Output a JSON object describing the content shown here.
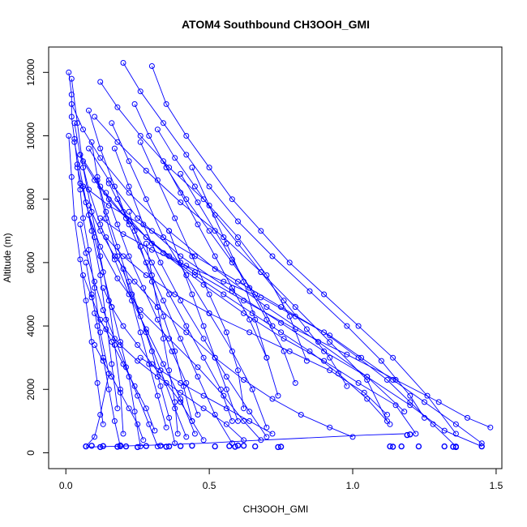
{
  "chart_data": {
    "type": "line",
    "title": "ATOM4 Southbound CH3OOH_GMI",
    "xlabel": "CH3OOH_GMI",
    "ylabel": "Altitude (m)",
    "xlim": [
      -0.06,
      1.52
    ],
    "ylim": [
      -500,
      12800
    ],
    "xticks": [
      0.0,
      0.5,
      1.0,
      1.5
    ],
    "xtick_labels": [
      "0.0",
      "0.5",
      "1.0",
      "1.5"
    ],
    "yticks": [
      0,
      2000,
      4000,
      6000,
      8000,
      10000,
      12000
    ],
    "ytick_labels": [
      "0",
      "2000",
      "4000",
      "6000",
      "8000",
      "10000",
      "12000"
    ],
    "grid": false,
    "legend": "none",
    "marker": "open-circle",
    "color": "#0000ff",
    "series": [
      {
        "x": [
          0.07,
          0.1,
          0.12,
          0.15,
          0.12,
          0.1,
          0.08,
          0.06,
          0.05,
          0.04,
          0.03,
          0.02,
          0.02,
          0.01
        ],
        "y": [
          200,
          500,
          1200,
          2500,
          3800,
          5200,
          6400,
          7400,
          8300,
          9100,
          9900,
          10600,
          11300,
          12000
        ]
      },
      {
        "x": [
          0.15,
          0.2,
          0.3,
          0.45,
          0.62,
          0.8,
          0.98,
          1.15,
          1.3,
          1.4,
          1.48
        ],
        "y": [
          8500,
          7600,
          6600,
          5700,
          4800,
          3900,
          3100,
          2300,
          1600,
          1100,
          800
        ]
      },
      {
        "x": [
          0.08,
          0.15,
          0.25,
          0.4,
          0.58,
          0.75,
          0.9,
          1.05,
          1.2,
          1.32,
          1.45
        ],
        "y": [
          9600,
          8600,
          7400,
          6200,
          5100,
          4100,
          3200,
          2400,
          1500,
          700,
          200
        ]
      },
      {
        "x": [
          0.02,
          0.06,
          0.12,
          0.22,
          0.36,
          0.52,
          0.7,
          0.88,
          1.05,
          1.18
        ],
        "y": [
          11000,
          10200,
          9300,
          8200,
          7000,
          5800,
          4600,
          3500,
          2400,
          1300
        ]
      },
      {
        "x": [
          0.1,
          0.18,
          0.28,
          0.4,
          0.55,
          0.68,
          0.8,
          0.92,
          1.05,
          1.12
        ],
        "y": [
          10600,
          9800,
          8900,
          7900,
          6800,
          5700,
          4600,
          3500,
          2300,
          1000
        ]
      },
      {
        "x": [
          0.05,
          0.12,
          0.22,
          0.34,
          0.48,
          0.62,
          0.76,
          0.9,
          1.02,
          1.15,
          1.22
        ],
        "y": [
          9400,
          8400,
          7300,
          6300,
          5300,
          4400,
          3600,
          2900,
          2200,
          1500,
          600
        ]
      },
      {
        "x": [
          0.3,
          0.35,
          0.42,
          0.5,
          0.58,
          0.68,
          0.78,
          0.9,
          1.02,
          1.14,
          1.26,
          1.36
        ],
        "y": [
          12200,
          11000,
          10000,
          9000,
          8000,
          7000,
          6000,
          5000,
          4000,
          3000,
          1800,
          600
        ]
      },
      {
        "x": [
          0.2,
          0.26,
          0.34,
          0.42,
          0.5,
          0.6,
          0.72,
          0.85,
          0.98,
          1.1,
          1.2,
          1.25
        ],
        "y": [
          12300,
          11400,
          10400,
          9400,
          8400,
          7300,
          6200,
          5100,
          4000,
          2900,
          1800,
          1100
        ]
      },
      {
        "x": [
          0.12,
          0.18,
          0.26,
          0.36,
          0.48,
          0.6,
          0.7,
          0.78,
          0.84
        ],
        "y": [
          11700,
          10900,
          10000,
          9000,
          8000,
          6800,
          5600,
          4300,
          2900
        ]
      },
      {
        "x": [
          0.06,
          0.08,
          0.12,
          0.18,
          0.26,
          0.36,
          0.46,
          0.55,
          0.62,
          0.68
        ],
        "y": [
          8400,
          7500,
          6500,
          5500,
          4500,
          3600,
          2700,
          1800,
          1000,
          400
        ]
      },
      {
        "x": [
          0.03,
          0.05,
          0.08,
          0.12,
          0.17,
          0.22,
          0.28,
          0.34,
          0.4,
          0.45
        ],
        "y": [
          10400,
          9400,
          8300,
          7200,
          6100,
          5000,
          3900,
          2800,
          1700,
          600
        ]
      },
      {
        "x": [
          0.09,
          0.11,
          0.14,
          0.18,
          0.22,
          0.26,
          0.3,
          0.33,
          0.36,
          0.38
        ],
        "y": [
          9800,
          8700,
          7600,
          6500,
          5400,
          4300,
          3200,
          2100,
          1100,
          300
        ]
      },
      {
        "x": [
          0.04,
          0.07,
          0.1,
          0.13,
          0.16,
          0.19,
          0.22,
          0.24,
          0.26
        ],
        "y": [
          9000,
          7900,
          6800,
          5700,
          4600,
          3500,
          2400,
          1300,
          200
        ]
      },
      {
        "x": [
          0.11,
          0.14,
          0.18,
          0.23,
          0.28,
          0.33,
          0.38,
          0.42
        ],
        "y": [
          8600,
          7400,
          6200,
          5000,
          3800,
          2600,
          1400,
          500
        ]
      },
      {
        "x": [
          0.02,
          0.04,
          0.06,
          0.09,
          0.12,
          0.15,
          0.17,
          0.19,
          0.2
        ],
        "y": [
          11800,
          10400,
          9000,
          7600,
          6200,
          4800,
          3400,
          2000,
          600
        ]
      },
      {
        "x": [
          0.16,
          0.22,
          0.28,
          0.34,
          0.42,
          0.5,
          0.58,
          0.65,
          0.7
        ],
        "y": [
          10400,
          9200,
          8000,
          6800,
          5600,
          4400,
          3200,
          2000,
          800
        ]
      },
      {
        "x": [
          0.26,
          0.32,
          0.38,
          0.44,
          0.5,
          0.56,
          0.6,
          0.62
        ],
        "y": [
          9800,
          8600,
          7400,
          6200,
          5000,
          3800,
          2600,
          1400
        ]
      },
      {
        "x": [
          0.08,
          0.12,
          0.17,
          0.24,
          0.32,
          0.42,
          0.52,
          0.62,
          0.72,
          0.82,
          0.92,
          1.0
        ],
        "y": [
          7800,
          7000,
          6200,
          5400,
          4600,
          3800,
          3000,
          2300,
          1700,
          1200,
          800,
          500
        ]
      },
      {
        "x": [
          0.18,
          0.24,
          0.3,
          0.36,
          0.42,
          0.48,
          0.54,
          0.58
        ],
        "y": [
          8000,
          7000,
          6000,
          5000,
          4000,
          3000,
          2000,
          1000
        ]
      },
      {
        "x": [
          0.05,
          0.07,
          0.1,
          0.13,
          0.17,
          0.21,
          0.25,
          0.29,
          0.32
        ],
        "y": [
          7200,
          6300,
          5400,
          4500,
          3600,
          2700,
          1800,
          900,
          200
        ]
      },
      {
        "x": [
          0.34,
          0.4,
          0.46,
          0.52,
          0.58,
          0.64,
          0.7,
          0.74
        ],
        "y": [
          9200,
          8200,
          7200,
          6200,
          5200,
          4200,
          3000,
          1800
        ]
      },
      {
        "x": [
          0.14,
          0.2,
          0.28,
          0.38,
          0.5,
          0.64,
          0.78,
          0.92,
          1.04,
          1.12
        ],
        "y": [
          6800,
          6200,
          5600,
          5000,
          4400,
          3800,
          3200,
          2600,
          1900,
          1200
        ]
      },
      {
        "x": [
          0.07,
          0.09,
          0.11,
          0.13,
          0.15,
          0.17,
          0.19
        ],
        "y": [
          6000,
          5000,
          4000,
          3000,
          2000,
          1000,
          200
        ]
      },
      {
        "x": [
          0.22,
          0.26,
          0.3,
          0.34,
          0.38,
          0.41,
          0.44
        ],
        "y": [
          7600,
          6500,
          5400,
          4300,
          3200,
          2100,
          1000
        ]
      },
      {
        "x": [
          0.4,
          0.46,
          0.52,
          0.58,
          0.64,
          0.7,
          0.76,
          0.8
        ],
        "y": [
          8800,
          7900,
          7000,
          6100,
          5200,
          4200,
          3200,
          2200
        ]
      },
      {
        "x": [
          0.06,
          0.1,
          0.15,
          0.21,
          0.28,
          0.36,
          0.45,
          0.55,
          0.65,
          0.75,
          0.85,
          0.95,
          1.05,
          1.13
        ],
        "y": [
          9200,
          8600,
          8000,
          7400,
          6800,
          6200,
          5600,
          5000,
          4400,
          3800,
          3200,
          2500,
          1700,
          900
        ]
      },
      {
        "x": [
          0.13,
          0.16,
          0.2,
          0.25,
          0.3,
          0.35,
          0.4,
          0.44,
          0.48
        ],
        "y": [
          5200,
          4600,
          4000,
          3400,
          2800,
          2200,
          1600,
          1000,
          400
        ]
      },
      {
        "x": [
          0.01,
          0.02,
          0.03,
          0.05,
          0.07,
          0.09,
          0.11,
          0.13
        ],
        "y": [
          10000,
          8700,
          7400,
          6100,
          4800,
          3500,
          2200,
          900
        ]
      },
      {
        "x": [
          0.24,
          0.29,
          0.35,
          0.42,
          0.5,
          0.58,
          0.66,
          0.72
        ],
        "y": [
          11000,
          10000,
          9000,
          8000,
          7000,
          6000,
          5000,
          4000
        ]
      },
      {
        "x": [
          0.1,
          0.14,
          0.19,
          0.25,
          0.32,
          0.4,
          0.48,
          0.56,
          0.62
        ],
        "y": [
          4400,
          3900,
          3400,
          2900,
          2400,
          1900,
          1400,
          900,
          400
        ]
      },
      {
        "x": [
          0.05,
          0.15,
          0.3,
          0.45,
          0.6,
          0.75,
          0.9,
          1.02,
          1.12,
          1.2,
          1.28,
          1.36
        ],
        "y": [
          8500,
          7800,
          7000,
          6200,
          5400,
          4600,
          3800,
          3000,
          2300,
          1600,
          900,
          200
        ]
      },
      {
        "x": [
          0.28,
          0.3,
          0.32,
          0.34,
          0.36,
          0.38,
          0.39
        ],
        "y": [
          6600,
          5600,
          4600,
          3600,
          2600,
          1600,
          600
        ]
      },
      {
        "x": [
          0.17,
          0.22,
          0.27,
          0.33,
          0.4,
          0.48,
          0.56,
          0.64,
          0.7
        ],
        "y": [
          9600,
          8400,
          7200,
          6000,
          4800,
          3600,
          2400,
          1300,
          500
        ]
      },
      {
        "x": [
          0.03,
          0.06,
          0.09,
          0.12,
          0.14,
          0.16,
          0.18
        ],
        "y": [
          9800,
          8400,
          7000,
          5600,
          4200,
          2800,
          1400
        ]
      },
      {
        "x": [
          0.44,
          0.5,
          0.56,
          0.62,
          0.66,
          0.7
        ],
        "y": [
          9000,
          7800,
          6600,
          5400,
          4200,
          3000
        ]
      },
      {
        "x": [
          0.08,
          0.12,
          0.17,
          0.22,
          0.28,
          0.34,
          0.4,
          0.46,
          0.52,
          0.58
        ],
        "y": [
          10800,
          9600,
          8400,
          7200,
          6000,
          4800,
          3600,
          2400,
          1200,
          300
        ]
      },
      {
        "x": [
          0.12,
          0.2,
          0.3,
          0.42,
          0.55,
          0.68,
          0.8,
          0.92,
          1.03,
          1.14,
          1.25,
          1.36,
          1.45
        ],
        "y": [
          7400,
          6900,
          6400,
          5900,
          5400,
          4900,
          4300,
          3700,
          3000,
          2300,
          1600,
          900,
          300
        ]
      },
      {
        "x": [
          0.36,
          0.4,
          0.44,
          0.48,
          0.52,
          0.56,
          0.6
        ],
        "y": [
          7000,
          6000,
          5000,
          4000,
          3000,
          2000,
          1000
        ]
      },
      {
        "x": [
          0.2,
          0.23,
          0.26,
          0.29,
          0.32,
          0.35
        ],
        "y": [
          5800,
          4800,
          3800,
          2800,
          1800,
          800
        ]
      },
      {
        "x": [
          0.14,
          0.18,
          0.22,
          0.27,
          0.32,
          0.37,
          0.42,
          0.46
        ],
        "y": [
          8200,
          7200,
          6200,
          5200,
          4200,
          3200,
          2200,
          1200
        ]
      },
      {
        "x": [
          0.06,
          0.09,
          0.12,
          0.16,
          0.2,
          0.24,
          0.28,
          0.31
        ],
        "y": [
          5600,
          4900,
          4200,
          3500,
          2800,
          2100,
          1400,
          700
        ]
      },
      {
        "x": [
          0.32,
          0.38,
          0.45,
          0.52,
          0.6,
          0.68,
          0.76,
          0.84,
          0.92,
          0.98
        ],
        "y": [
          10200,
          9300,
          8400,
          7500,
          6600,
          5700,
          4800,
          3900,
          3000,
          2100
        ]
      },
      {
        "x": [
          0.1,
          0.13,
          0.16,
          0.19,
          0.22,
          0.25,
          0.27
        ],
        "y": [
          3400,
          2900,
          2400,
          1900,
          1400,
          900,
          400
        ]
      },
      {
        "x": [
          0.26,
          0.33,
          0.4,
          0.48,
          0.56,
          0.64,
          0.72
        ],
        "y": [
          3000,
          2600,
          2200,
          1800,
          1400,
          1000,
          600
        ]
      }
    ],
    "surface_points": {
      "x": [
        0.07,
        0.09,
        0.12,
        0.13,
        0.18,
        0.19,
        0.21,
        0.25,
        0.28,
        0.33,
        0.35,
        0.36,
        0.4,
        0.44,
        0.52,
        0.57,
        0.59,
        0.6,
        0.62,
        0.66,
        0.74,
        0.75,
        1.13,
        1.14,
        1.17,
        1.19,
        1.2,
        1.23,
        1.32,
        1.35,
        1.36,
        1.45
      ],
      "y": [
        200,
        220,
        180,
        210,
        190,
        230,
        200,
        180,
        210,
        220,
        190,
        200,
        210,
        220,
        200,
        210,
        190,
        230,
        220,
        200,
        180,
        190,
        200,
        190,
        200,
        560,
        580,
        200,
        200,
        190,
        180,
        200
      ]
    },
    "surface_line": {
      "x": [
        0.07,
        0.16,
        0.3,
        0.48,
        0.64,
        0.82,
        0.96,
        1.05,
        1.18
      ],
      "y": [
        180,
        200,
        240,
        300,
        380,
        460,
        520,
        560,
        600
      ]
    }
  }
}
